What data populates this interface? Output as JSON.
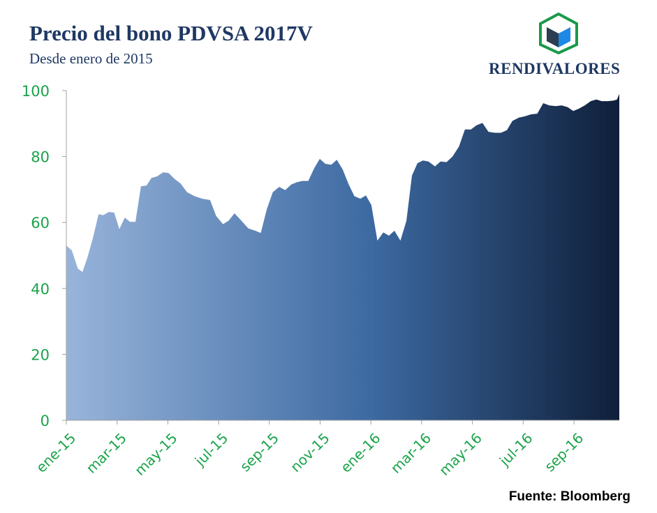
{
  "header": {
    "title": "Precio del bono PDVSA 2017V",
    "subtitle": "Desde enero de 2015"
  },
  "logo": {
    "text": "RENDIVALORES",
    "accent_green": "#1a9a4a",
    "accent_blue": "#1e88e5",
    "accent_navy": "#2c3e50"
  },
  "footer": {
    "source": "Fuente: Bloomberg"
  },
  "colors": {
    "tick_labels": "#1aa34a",
    "gradient_start": "#98b4da",
    "gradient_mid": "#3d6aa2",
    "gradient_end": "#0f1f3a",
    "axis": "#a0a0a0"
  },
  "chart_data": {
    "type": "area",
    "ylim": [
      0,
      100
    ],
    "y_ticks": [
      0,
      20,
      40,
      60,
      80,
      100
    ],
    "x_tick_labels": [
      "ene-15",
      "mar-15",
      "may-15",
      "jul-15",
      "sep-15",
      "nov-15",
      "ene-16",
      "mar-16",
      "may-16",
      "jul-16",
      "sep-16"
    ],
    "x_range_months": [
      0,
      22
    ],
    "grid": false,
    "legend": "none",
    "series": [
      {
        "points": [
          [
            0.0,
            53.0
          ],
          [
            0.12,
            51.5
          ],
          [
            0.25,
            46.0
          ],
          [
            0.35,
            45.0
          ],
          [
            0.46,
            49.5
          ],
          [
            0.58,
            55.5
          ],
          [
            0.7,
            62.5
          ],
          [
            0.8,
            62.2
          ],
          [
            0.92,
            63.2
          ],
          [
            1.04,
            63.0
          ],
          [
            1.15,
            58.0
          ],
          [
            1.27,
            61.5
          ],
          [
            1.38,
            60.2
          ],
          [
            1.5,
            60.2
          ],
          [
            1.62,
            71.0
          ],
          [
            1.74,
            71.2
          ],
          [
            1.85,
            73.5
          ],
          [
            1.97,
            74.0
          ],
          [
            2.1,
            75.2
          ],
          [
            2.22,
            75.0
          ],
          [
            2.35,
            73.2
          ],
          [
            2.48,
            71.8
          ],
          [
            2.62,
            69.2
          ],
          [
            2.78,
            68.0
          ],
          [
            2.95,
            67.2
          ],
          [
            3.12,
            66.8
          ],
          [
            3.25,
            62.0
          ],
          [
            3.4,
            59.5
          ],
          [
            3.52,
            60.5
          ],
          [
            3.65,
            62.8
          ],
          [
            3.8,
            60.5
          ],
          [
            3.95,
            58.2
          ],
          [
            4.1,
            57.5
          ],
          [
            4.22,
            56.8
          ],
          [
            4.35,
            64.0
          ],
          [
            4.48,
            69.2
          ],
          [
            4.62,
            70.8
          ],
          [
            4.75,
            69.8
          ],
          [
            4.88,
            71.5
          ],
          [
            5.0,
            72.2
          ],
          [
            5.12,
            72.6
          ],
          [
            5.25,
            72.6
          ],
          [
            5.38,
            76.5
          ],
          [
            5.5,
            79.3
          ],
          [
            5.62,
            77.8
          ],
          [
            5.75,
            77.5
          ],
          [
            5.87,
            79.0
          ],
          [
            6.0,
            76.0
          ],
          [
            6.12,
            71.8
          ],
          [
            6.25,
            68.0
          ],
          [
            6.38,
            67.2
          ],
          [
            6.5,
            68.2
          ],
          [
            6.62,
            65.3
          ],
          [
            6.75,
            54.5
          ],
          [
            6.88,
            57.0
          ],
          [
            7.0,
            56.0
          ],
          [
            7.12,
            57.5
          ],
          [
            7.25,
            54.5
          ],
          [
            7.38,
            60.5
          ],
          [
            7.5,
            74.2
          ],
          [
            7.62,
            78.0
          ],
          [
            7.74,
            78.8
          ],
          [
            7.86,
            78.5
          ],
          [
            8.0,
            77.0
          ],
          [
            8.12,
            78.5
          ],
          [
            8.25,
            78.3
          ],
          [
            8.38,
            80.0
          ],
          [
            8.52,
            83.0
          ],
          [
            8.65,
            88.2
          ],
          [
            8.78,
            88.2
          ],
          [
            8.9,
            89.5
          ],
          [
            9.03,
            90.2
          ],
          [
            9.16,
            87.5
          ],
          [
            9.3,
            87.2
          ],
          [
            9.43,
            87.2
          ],
          [
            9.56,
            88.0
          ],
          [
            9.68,
            90.8
          ],
          [
            9.82,
            91.8
          ],
          [
            9.95,
            92.2
          ],
          [
            10.08,
            92.8
          ],
          [
            10.22,
            93.0
          ],
          [
            10.35,
            96.2
          ],
          [
            10.48,
            95.5
          ],
          [
            10.62,
            95.3
          ],
          [
            10.75,
            95.5
          ],
          [
            10.88,
            95.0
          ],
          [
            11.0,
            93.8
          ],
          [
            11.12,
            94.5
          ],
          [
            11.25,
            95.5
          ],
          [
            11.38,
            96.8
          ],
          [
            11.5,
            97.3
          ],
          [
            11.62,
            96.8
          ],
          [
            11.75,
            96.8
          ],
          [
            11.88,
            97.0
          ],
          [
            11.95,
            97.3
          ],
          [
            12.0,
            99.0
          ]
        ]
      }
    ]
  }
}
